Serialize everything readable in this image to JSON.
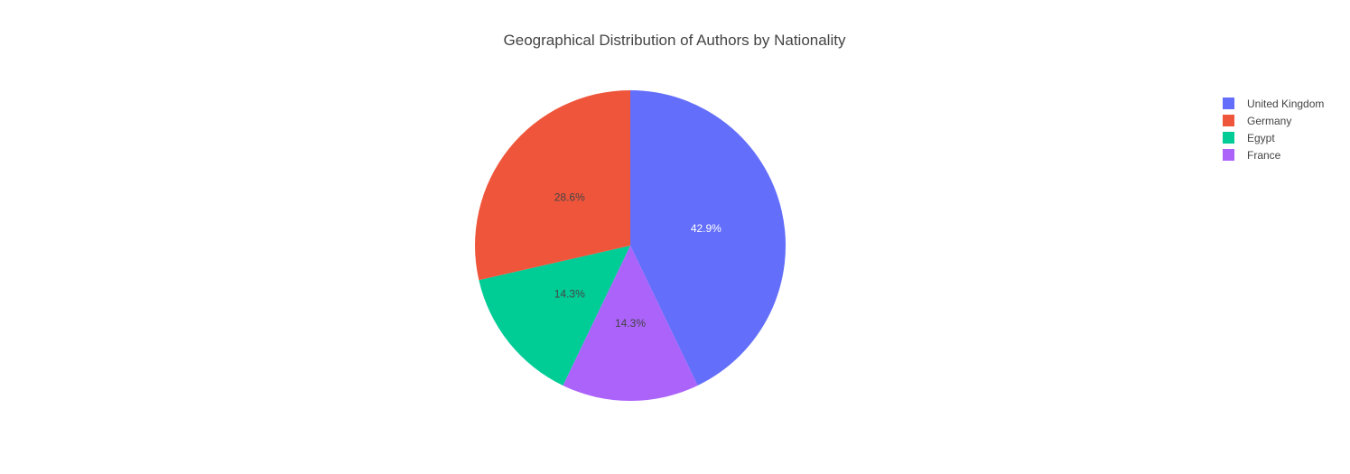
{
  "chart_data": {
    "type": "pie",
    "title": "Geographical Distribution of Authors by Nationality",
    "legend_position": "top-right",
    "start_angle_deg": 0,
    "direction": "clockwise",
    "slices": [
      {
        "label": "United Kingdom",
        "value": 42.9,
        "text": "42.9%",
        "color": "#636efa",
        "text_color": "#ffffff"
      },
      {
        "label": "France",
        "value": 14.3,
        "text": "14.3%",
        "color": "#ab63fa",
        "text_color": "#444444"
      },
      {
        "label": "Egypt",
        "value": 14.3,
        "text": "14.3%",
        "color": "#00cc96",
        "text_color": "#444444"
      },
      {
        "label": "Germany",
        "value": 28.6,
        "text": "28.6%",
        "color": "#ef553b",
        "text_color": "#444444"
      }
    ],
    "legend_order": [
      "United Kingdom",
      "Germany",
      "Egypt",
      "France"
    ]
  }
}
